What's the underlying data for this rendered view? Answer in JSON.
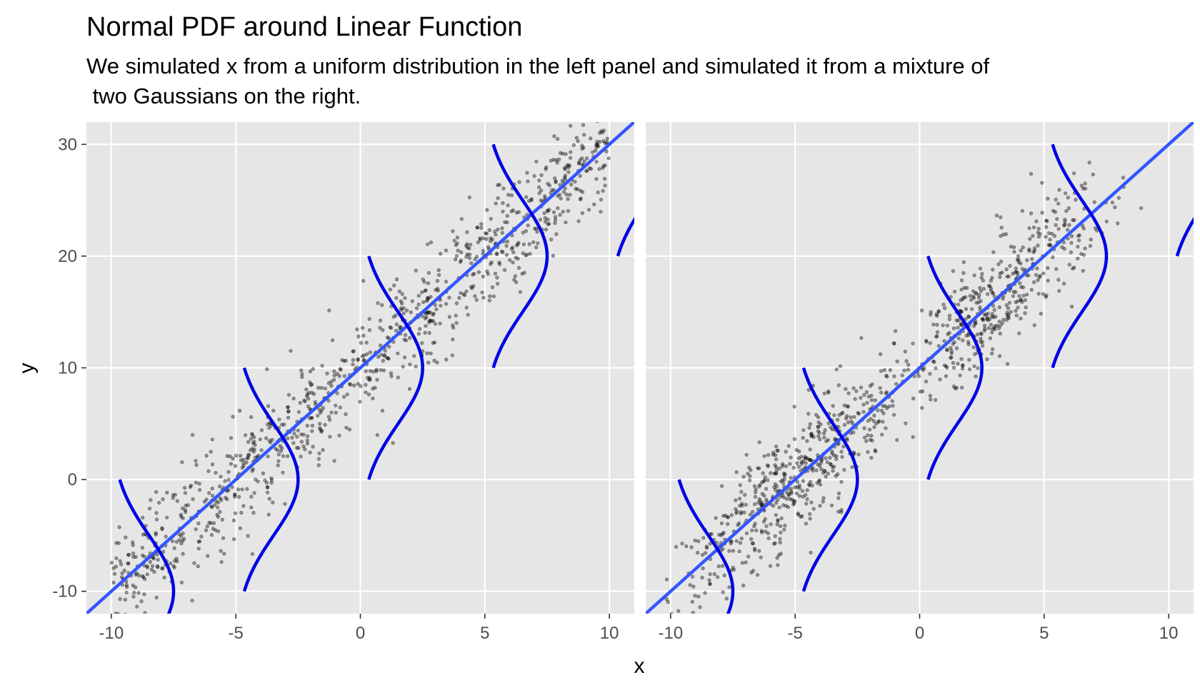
{
  "chart_data": {
    "type": "scatter",
    "title": "Normal PDF around Linear Function",
    "subtitle_lines": [
      "We simulated x from a uniform distribution in the left panel and simulated it from a mixture of",
      " two Gaussians on the right."
    ],
    "xlabel": "x",
    "ylabel": "y",
    "xlim": [
      -11,
      11
    ],
    "ylim": [
      -12,
      32
    ],
    "x_ticks": [
      -10,
      -5,
      0,
      5,
      10
    ],
    "x_tick_labels": [
      "-10",
      "-5",
      "0",
      "5",
      "10"
    ],
    "y_ticks": [
      -10,
      0,
      10,
      20,
      30
    ],
    "y_tick_labels": [
      "-10",
      "0",
      "10",
      "20",
      "30"
    ],
    "legend": "none",
    "grid": true,
    "background_color": "#e6e6e6",
    "point_color": "#000000",
    "regression_color": "#3355ff",
    "curve_color": "#0000e6",
    "regression_line": {
      "intercept": 10,
      "slope": 2
    },
    "pdf_curves": {
      "centers_x": [
        -10,
        -5,
        0,
        5,
        10
      ],
      "sd": 5,
      "height_x": 2.5,
      "half_span_y": 10
    },
    "panels": [
      {
        "name": "uniform",
        "x_distribution": "uniform",
        "x_range": [
          -10,
          10
        ],
        "n_points": 1000,
        "noise_sd": 2.5
      },
      {
        "name": "gaussian-mixture",
        "x_distribution": "mixture of two Gaussians",
        "components": [
          {
            "mean": -5,
            "sd": 2.2,
            "weight": 0.55
          },
          {
            "mean": 3,
            "sd": 2.0,
            "weight": 0.45
          }
        ],
        "n_points": 1000,
        "noise_sd": 2.5
      }
    ]
  }
}
